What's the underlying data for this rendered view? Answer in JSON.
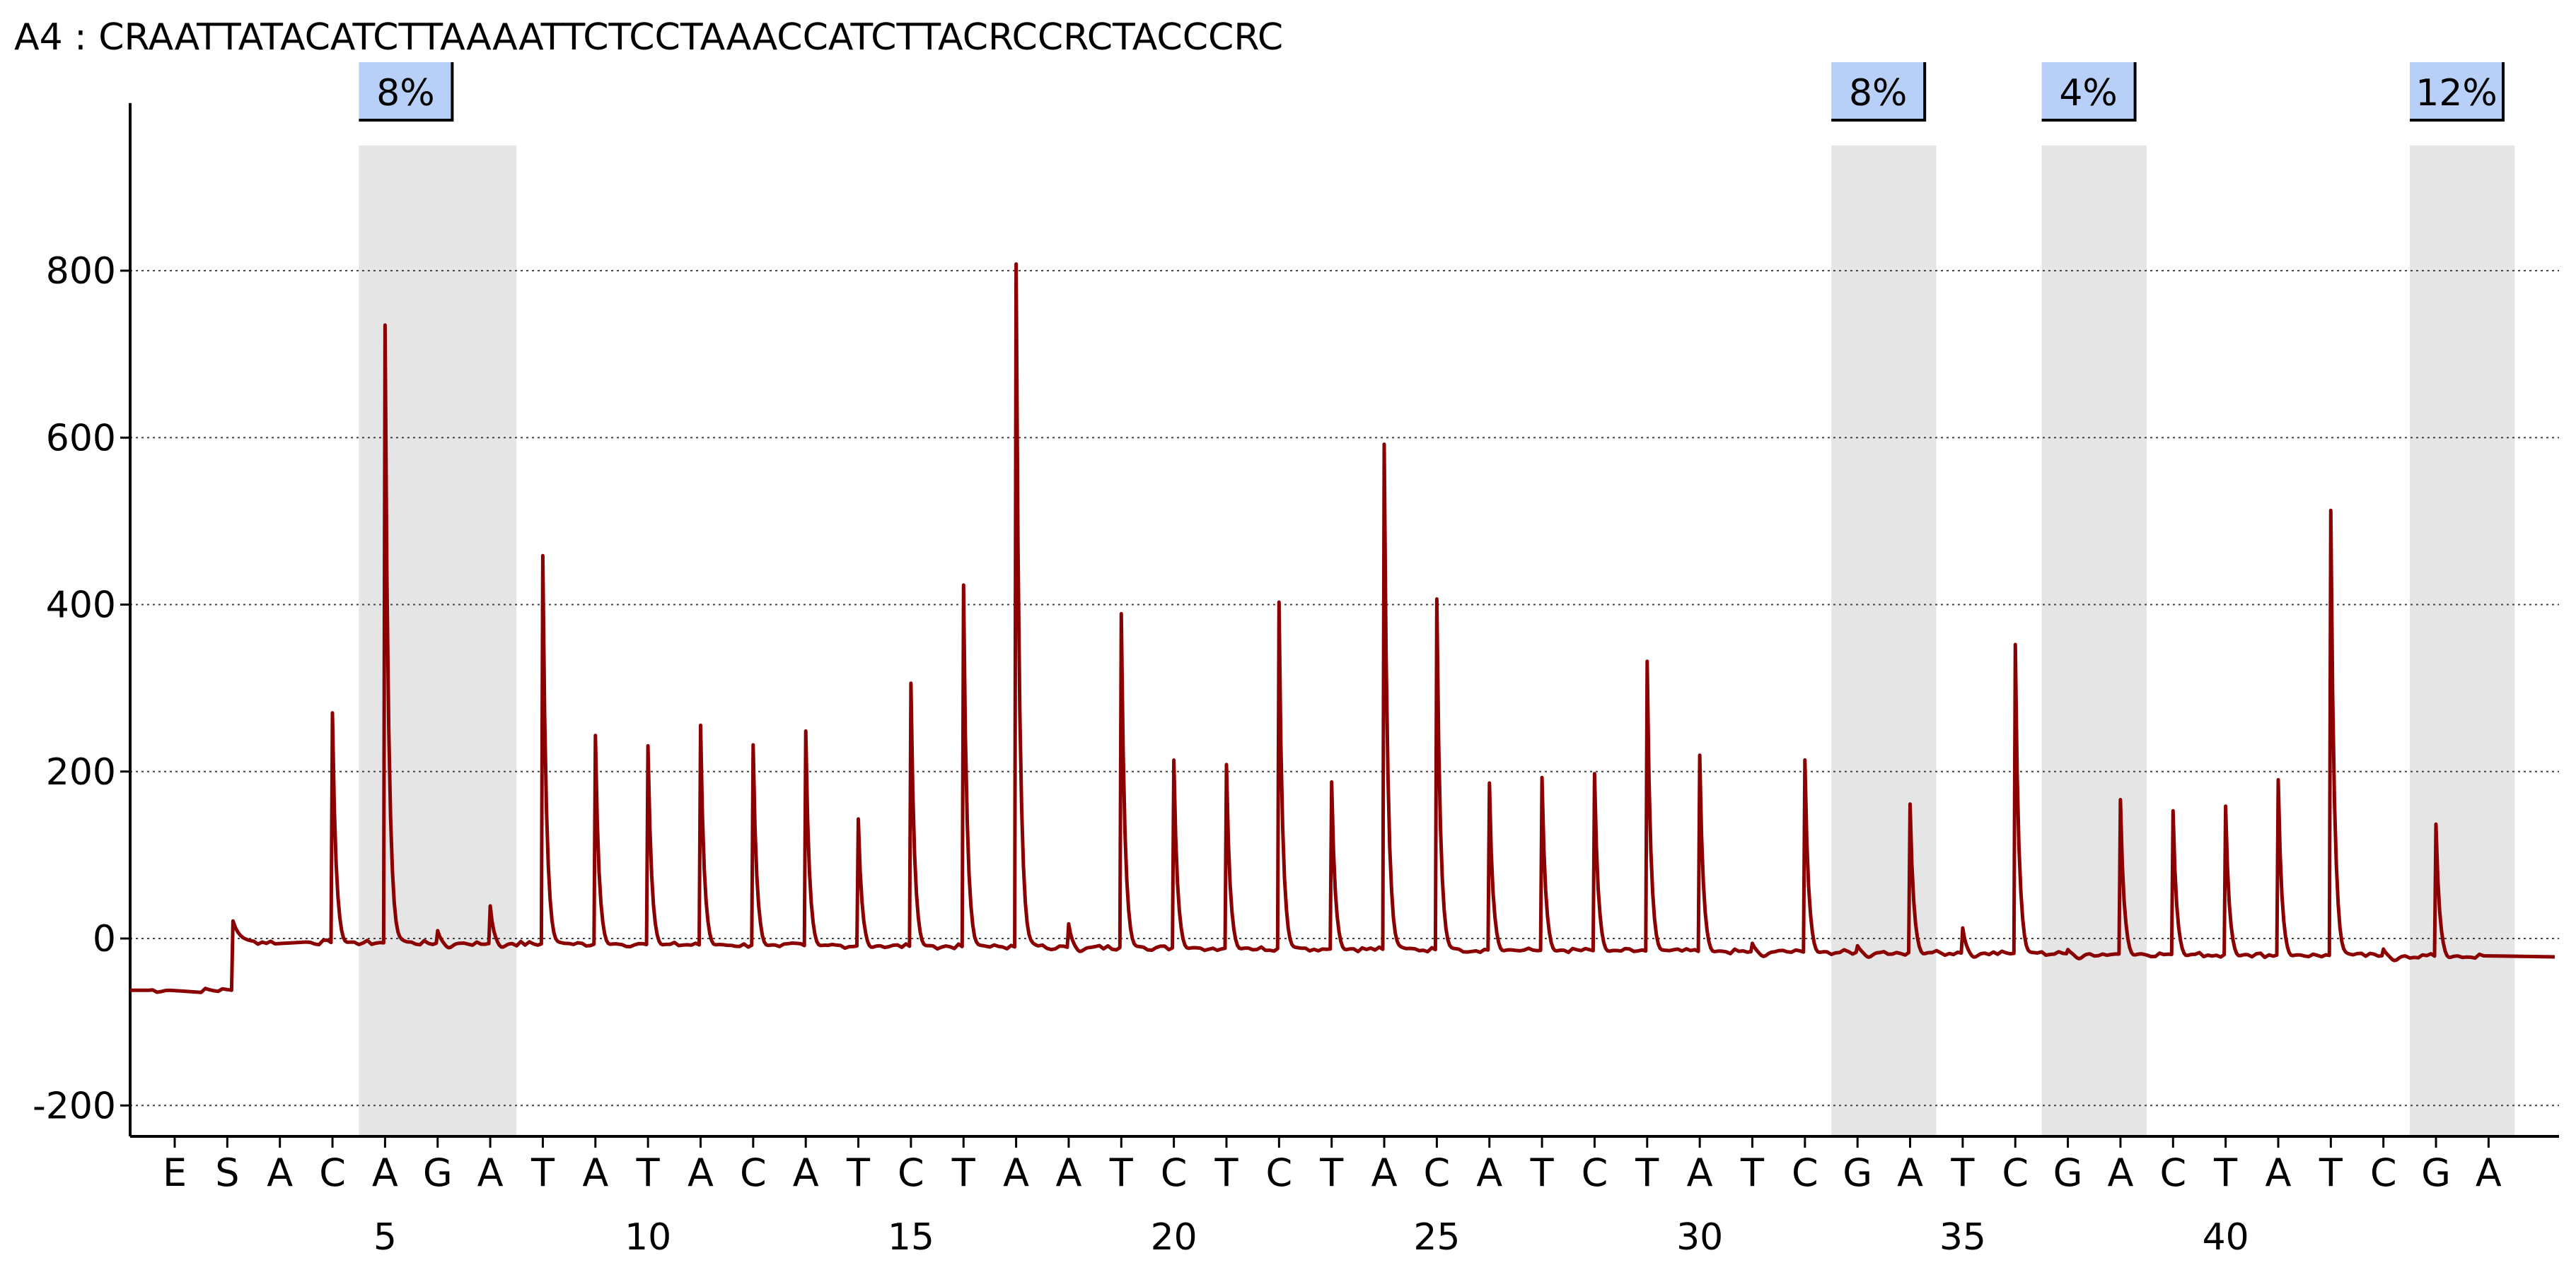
{
  "chart_data": {
    "type": "line",
    "sample_label": "A4",
    "separator": ":",
    "sequence": "CRAATTATACATCTTAAAATTCTCCTAAACCATCTTACRCCRCTACCCRC",
    "ylim": [
      -240,
      950
    ],
    "y_ticks": [
      -200,
      0,
      200,
      400,
      600,
      800
    ],
    "grid": "horizontal dotted",
    "dispensation_order": [
      "E",
      "S",
      "A",
      "C",
      "A",
      "G",
      "A",
      "T",
      "A",
      "T",
      "A",
      "C",
      "A",
      "T",
      "C",
      "T",
      "A",
      "A",
      "T",
      "C",
      "T",
      "C",
      "T",
      "A",
      "C",
      "A",
      "T",
      "C",
      "T",
      "A",
      "T",
      "C",
      "G",
      "A",
      "T",
      "C",
      "G",
      "A",
      "C",
      "T",
      "A",
      "T",
      "C",
      "G",
      "A"
    ],
    "x_numbers": [
      5,
      10,
      15,
      20,
      25,
      30,
      35,
      40
    ],
    "peak_heights": [
      0,
      25,
      0,
      275,
      740,
      15,
      45,
      465,
      250,
      238,
      263,
      240,
      257,
      152,
      315,
      433,
      818,
      28,
      400,
      225,
      220,
      415,
      200,
      605,
      420,
      200,
      207,
      212,
      347,
      235,
      10,
      230,
      8,
      178,
      30,
      370,
      5,
      185,
      172,
      178,
      210,
      533,
      8,
      158,
      0
    ],
    "baseline": {
      "start": -62,
      "jump_at_position": 2,
      "after_jump": -4,
      "end": -22
    },
    "highlight_regions": [
      {
        "positions": [
          5,
          7
        ],
        "label": "8%"
      },
      {
        "positions": [
          33,
          34
        ],
        "label": "8%"
      },
      {
        "positions": [
          37,
          38
        ],
        "label": "4%"
      },
      {
        "positions": [
          44,
          45
        ],
        "label": "12%"
      }
    ],
    "line_color": "#8b0000",
    "highlight_color": "#e5e5e5",
    "label_box_color": "#b8d0f7"
  }
}
